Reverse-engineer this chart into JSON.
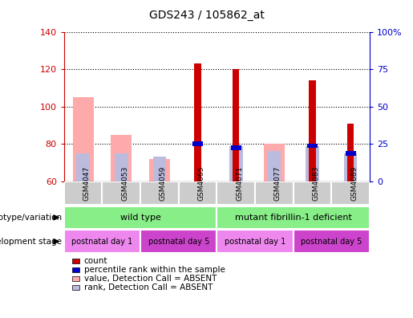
{
  "title": "GDS243 / 105862_at",
  "samples": [
    "GSM4047",
    "GSM4053",
    "GSM4059",
    "GSM4065",
    "GSM4071",
    "GSM4077",
    "GSM4083",
    "GSM4089"
  ],
  "count_values": [
    null,
    null,
    null,
    123,
    120,
    null,
    114,
    91
  ],
  "absent_value_values": [
    105,
    85,
    72,
    null,
    null,
    80,
    null,
    null
  ],
  "absent_rank_values": [
    75,
    75,
    73,
    null,
    79,
    76,
    79,
    75
  ],
  "percentile_rank_left": [
    null,
    null,
    null,
    80,
    78,
    null,
    79,
    75
  ],
  "ybase": 60,
  "ylim_left": [
    60,
    140
  ],
  "ylim_right": [
    0,
    100
  ],
  "yticks_left": [
    60,
    80,
    100,
    120,
    140
  ],
  "yticks_right": [
    0,
    25,
    50,
    75,
    100
  ],
  "ytick_labels_right": [
    "0",
    "25",
    "50",
    "75",
    "100%"
  ],
  "color_count": "#cc0000",
  "color_percentile": "#0000cc",
  "color_absent_value": "#ffaaaa",
  "color_absent_rank": "#bbbbdd",
  "color_geno_wt": "#88ee88",
  "color_geno_mut": "#88ee88",
  "color_dev_day1": "#ee88ee",
  "color_dev_day5": "#cc44cc",
  "genotype_groups": [
    {
      "label": "wild type",
      "start": 0,
      "end": 4
    },
    {
      "label": "mutant fibrillin-1 deficient",
      "start": 4,
      "end": 8
    }
  ],
  "development_groups": [
    {
      "label": "postnatal day 1",
      "start": 0,
      "end": 2,
      "day": 1
    },
    {
      "label": "postnatal day 5",
      "start": 2,
      "end": 4,
      "day": 5
    },
    {
      "label": "postnatal day 1",
      "start": 4,
      "end": 6,
      "day": 1
    },
    {
      "label": "postnatal day 5",
      "start": 6,
      "end": 8,
      "day": 5
    }
  ],
  "legend_items": [
    {
      "label": "count",
      "color": "#cc0000"
    },
    {
      "label": "percentile rank within the sample",
      "color": "#0000cc"
    },
    {
      "label": "value, Detection Call = ABSENT",
      "color": "#ffaaaa"
    },
    {
      "label": "rank, Detection Call = ABSENT",
      "color": "#bbbbdd"
    }
  ],
  "axis_color_left": "#cc0000",
  "axis_color_right": "#0000cc",
  "background_color": "#ffffff"
}
